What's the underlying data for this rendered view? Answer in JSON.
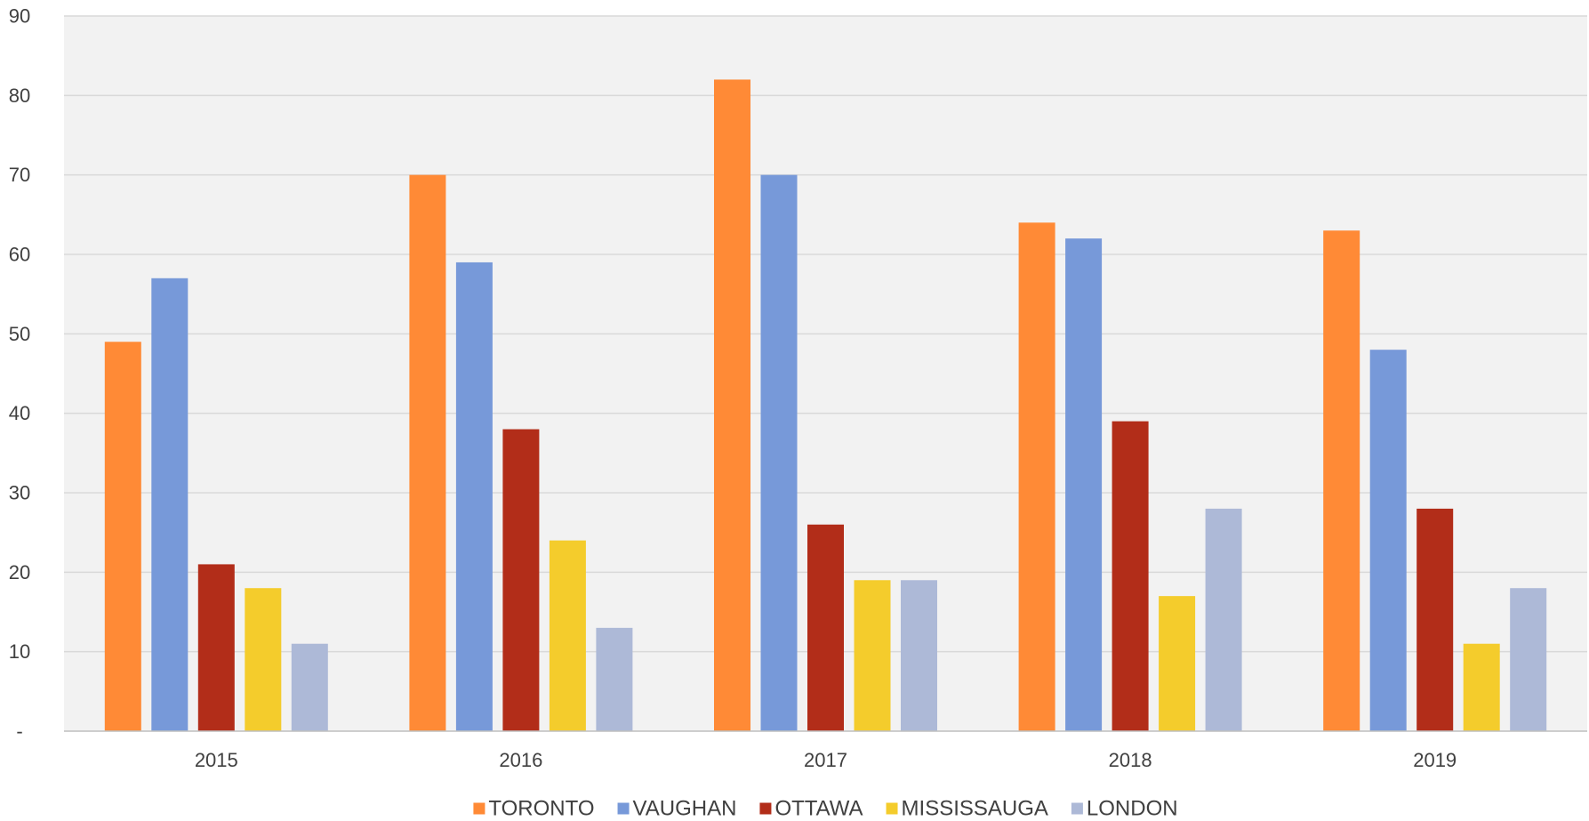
{
  "chart_data": {
    "type": "bar",
    "categories": [
      "2015",
      "2016",
      "2017",
      "2018",
      "2019"
    ],
    "series": [
      {
        "name": "TORONTO",
        "color": "#FF8A36",
        "values": [
          49,
          70,
          82,
          64,
          63
        ]
      },
      {
        "name": "VAUGHAN",
        "color": "#7799D9",
        "values": [
          57,
          59,
          70,
          62,
          48
        ]
      },
      {
        "name": "OTTAWA",
        "color": "#B22D19",
        "values": [
          21,
          38,
          26,
          39,
          28
        ]
      },
      {
        "name": "MISSISSAUGA",
        "color": "#F4CC2C",
        "values": [
          18,
          24,
          19,
          17,
          11
        ]
      },
      {
        "name": "LONDON",
        "color": "#ADB9D7",
        "values": [
          11,
          13,
          19,
          28,
          18
        ]
      }
    ],
    "ylim": [
      0,
      90
    ],
    "y_ticks": [
      {
        "value": 0,
        "label": "-"
      },
      {
        "value": 10,
        "label": "10"
      },
      {
        "value": 20,
        "label": "20"
      },
      {
        "value": 30,
        "label": "30"
      },
      {
        "value": 40,
        "label": "40"
      },
      {
        "value": 50,
        "label": "50"
      },
      {
        "value": 60,
        "label": "60"
      },
      {
        "value": 70,
        "label": "70"
      },
      {
        "value": 80,
        "label": "80"
      },
      {
        "value": 90,
        "label": "90"
      }
    ],
    "grid": true,
    "legend": "bottom",
    "plot_background": "#F2F2F2",
    "gridline_color": "#D9D9D9"
  }
}
